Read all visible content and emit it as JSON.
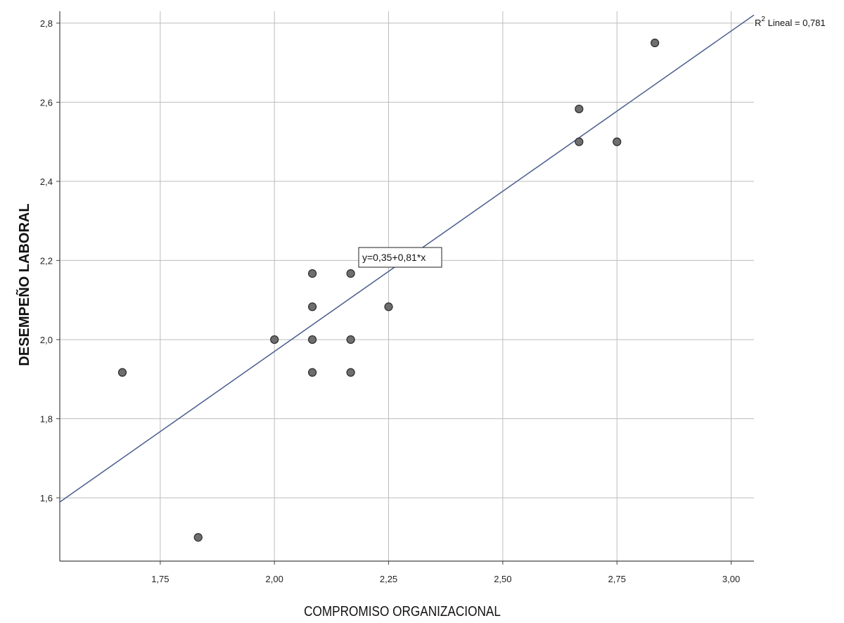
{
  "chart_data": {
    "type": "scatter",
    "title": "",
    "xlabel": "COMPROMISO ORGANIZACIONAL",
    "ylabel": "DESEMPEÑO LABORAL",
    "xlim": [
      1.53,
      3.05
    ],
    "ylim": [
      1.44,
      2.83
    ],
    "x_ticks": [
      1.75,
      2.0,
      2.25,
      2.5,
      2.75,
      3.0
    ],
    "x_tick_labels": [
      "1,75",
      "2,00",
      "2,25",
      "2,50",
      "2,75",
      "3,00"
    ],
    "y_ticks": [
      1.6,
      1.8,
      2.0,
      2.2,
      2.4,
      2.6,
      2.8
    ],
    "y_tick_labels": [
      "1,6",
      "1,8",
      "2,0",
      "2,2",
      "2,4",
      "2,6",
      "2,8"
    ],
    "grid": true,
    "points": [
      {
        "x": 1.667,
        "y": 1.917
      },
      {
        "x": 1.833,
        "y": 1.5
      },
      {
        "x": 2.0,
        "y": 2.0
      },
      {
        "x": 2.083,
        "y": 2.167
      },
      {
        "x": 2.083,
        "y": 2.083
      },
      {
        "x": 2.083,
        "y": 2.0
      },
      {
        "x": 2.083,
        "y": 1.917
      },
      {
        "x": 2.167,
        "y": 2.167
      },
      {
        "x": 2.167,
        "y": 2.0
      },
      {
        "x": 2.167,
        "y": 1.917
      },
      {
        "x": 2.25,
        "y": 2.083
      },
      {
        "x": 2.667,
        "y": 2.583
      },
      {
        "x": 2.667,
        "y": 2.5
      },
      {
        "x": 2.75,
        "y": 2.5
      },
      {
        "x": 2.833,
        "y": 2.75
      }
    ],
    "fit_line": {
      "intercept": 0.35,
      "slope": 0.81
    },
    "equation_label": "y=0,35+0,81*x",
    "r2_prefix": "R",
    "r2_sup": "2",
    "r2_suffix": " Lineal = 0,781",
    "colors": {
      "point_fill": "#6e6e6e",
      "point_stroke": "#2b2b2b",
      "fit_line": "#4a5f8f",
      "grid": "#bdbdbd",
      "axis": "#444444"
    }
  }
}
